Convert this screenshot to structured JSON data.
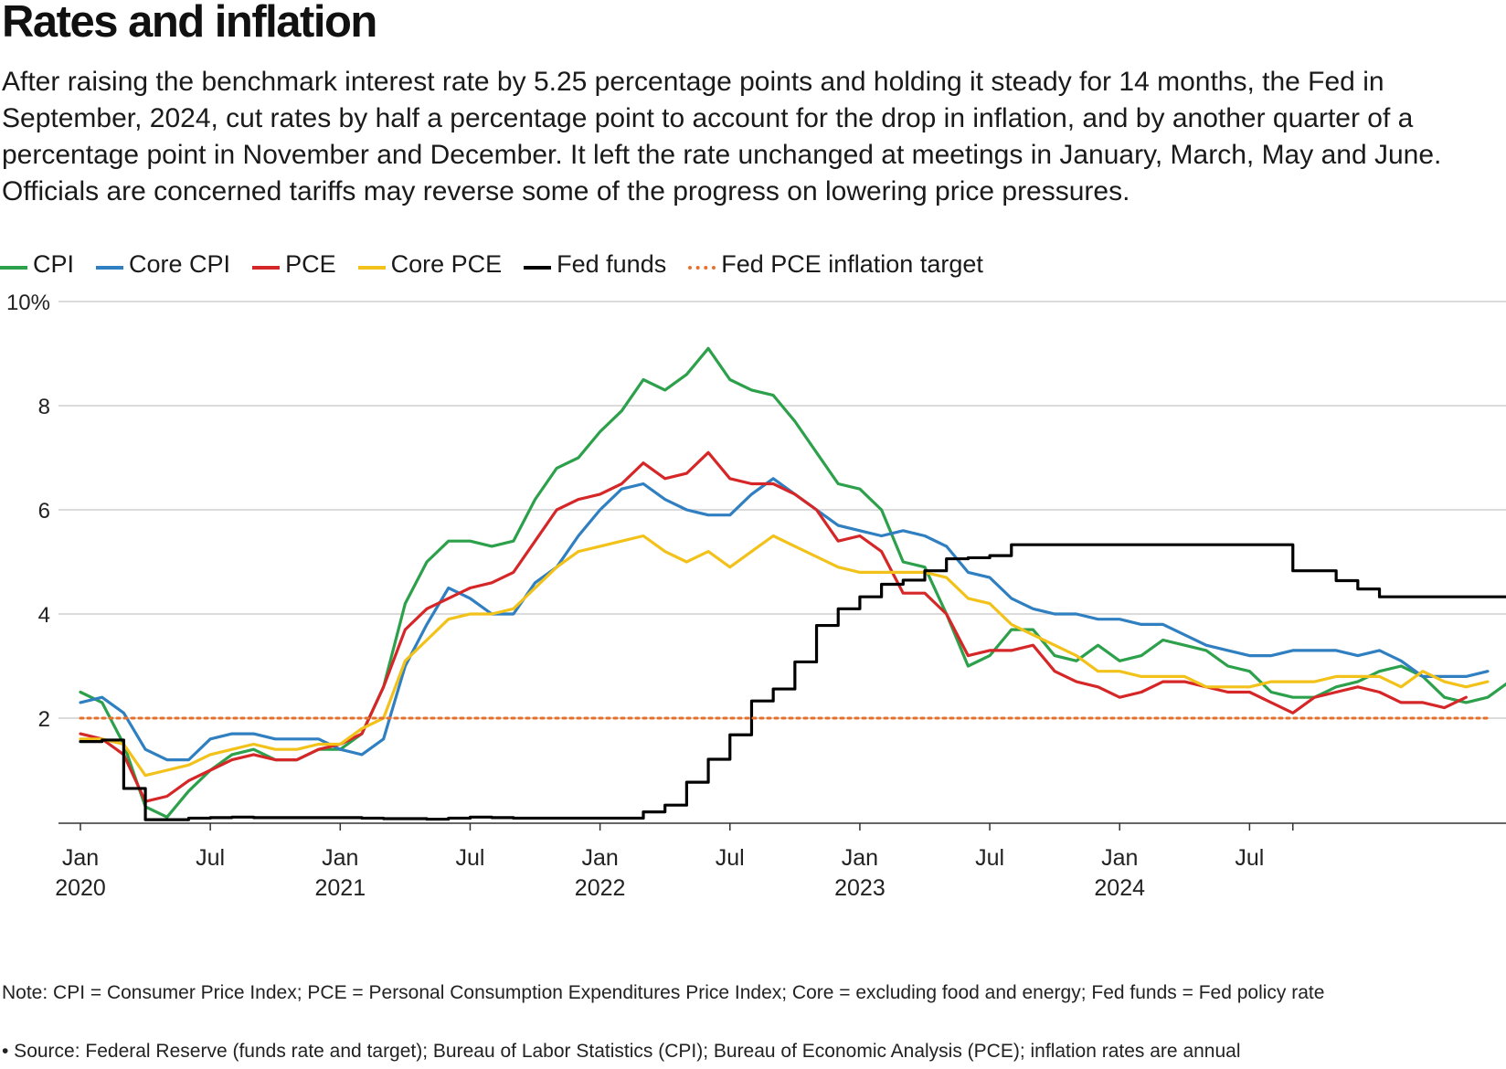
{
  "title": "Rates and inflation",
  "subtitle": "After raising the benchmark interest rate by 5.25 percentage points and holding it steady for 14 months, the Fed in September, 2024, cut rates by half a percentage point to account for the drop in inflation, and by another quarter of a percentage point in November and December. It left the rate unchanged at meetings in January, March, May and June. Officials are concerned tariffs may reverse some of the progress on lowering price pressures.",
  "note": "Note: CPI = Consumer Price Index; PCE = Personal Consumption Expenditures Price Index; Core = excluding food and energy; Fed funds = Fed policy rate",
  "source": "• Source: Federal Reserve (funds rate and target); Bureau of Labor Statistics (CPI); Bureau of Economic Analysis (PCE); inflation rates are annual",
  "chart_data": {
    "type": "line",
    "title": "Rates and inflation",
    "xlabel": "",
    "ylabel": "",
    "x_start": "2020-01",
    "x_unit": "month",
    "x_range": [
      0,
      65
    ],
    "ylim": [
      0,
      10
    ],
    "y_ticks": [
      {
        "value": 10,
        "label": "10%"
      },
      {
        "value": 8,
        "label": "8"
      },
      {
        "value": 6,
        "label": "6"
      },
      {
        "value": 4,
        "label": "4"
      },
      {
        "value": 2,
        "label": "2"
      }
    ],
    "x_ticks": [
      {
        "month": 0,
        "label": "Jan",
        "year": "2020"
      },
      {
        "month": 6,
        "label": "Jul",
        "year": ""
      },
      {
        "month": 12,
        "label": "Jan",
        "year": "2021"
      },
      {
        "month": 18,
        "label": "Jul",
        "year": ""
      },
      {
        "month": 24,
        "label": "Jan",
        "year": "2022"
      },
      {
        "month": 30,
        "label": "Jul",
        "year": ""
      },
      {
        "month": 36,
        "label": "Jan",
        "year": "2023"
      },
      {
        "month": 42,
        "label": "Jul",
        "year": ""
      },
      {
        "month": 48,
        "label": "Jan",
        "year": "2024"
      },
      {
        "month": 54,
        "label": "Jul",
        "year": ""
      }
    ],
    "extra_tick_months": [
      56
    ],
    "grid": true,
    "legend_position": "top-left",
    "series": [
      {
        "name": "CPI",
        "color": "#2ca04a",
        "style": "solid",
        "step": false,
        "values": [
          2.5,
          2.3,
          1.5,
          0.3,
          0.1,
          0.6,
          1.0,
          1.3,
          1.4,
          1.2,
          1.2,
          1.4,
          1.4,
          1.7,
          2.6,
          4.2,
          5.0,
          5.4,
          5.4,
          5.3,
          5.4,
          6.2,
          6.8,
          7.0,
          7.5,
          7.9,
          8.5,
          8.3,
          8.6,
          9.1,
          8.5,
          8.3,
          8.2,
          7.7,
          7.1,
          6.5,
          6.4,
          6.0,
          5.0,
          4.9,
          4.0,
          3.0,
          3.2,
          3.7,
          3.7,
          3.2,
          3.1,
          3.4,
          3.1,
          3.2,
          3.5,
          3.4,
          3.3,
          3.0,
          2.9,
          2.5,
          2.4,
          2.4,
          2.6,
          2.7,
          2.9,
          3.0,
          2.8,
          2.4,
          2.3,
          2.4,
          2.7
        ]
      },
      {
        "name": "Core CPI",
        "color": "#2f7fc1",
        "style": "solid",
        "step": false,
        "values": [
          2.3,
          2.4,
          2.1,
          1.4,
          1.2,
          1.2,
          1.6,
          1.7,
          1.7,
          1.6,
          1.6,
          1.6,
          1.4,
          1.3,
          1.6,
          3.0,
          3.8,
          4.5,
          4.3,
          4.0,
          4.0,
          4.6,
          4.9,
          5.5,
          6.0,
          6.4,
          6.5,
          6.2,
          6.0,
          5.9,
          5.9,
          6.3,
          6.6,
          6.3,
          6.0,
          5.7,
          5.6,
          5.5,
          5.6,
          5.5,
          5.3,
          4.8,
          4.7,
          4.3,
          4.1,
          4.0,
          4.0,
          3.9,
          3.9,
          3.8,
          3.8,
          3.6,
          3.4,
          3.3,
          3.2,
          3.2,
          3.3,
          3.3,
          3.3,
          3.2,
          3.3,
          3.1,
          2.8,
          2.8,
          2.8,
          2.9
        ]
      },
      {
        "name": "PCE",
        "color": "#d62728",
        "style": "solid",
        "step": false,
        "values": [
          1.7,
          1.6,
          1.3,
          0.4,
          0.5,
          0.8,
          1.0,
          1.2,
          1.3,
          1.2,
          1.2,
          1.4,
          1.5,
          1.7,
          2.6,
          3.7,
          4.1,
          4.3,
          4.5,
          4.6,
          4.8,
          5.4,
          6.0,
          6.2,
          6.3,
          6.5,
          6.9,
          6.6,
          6.7,
          7.1,
          6.6,
          6.5,
          6.5,
          6.3,
          6.0,
          5.4,
          5.5,
          5.2,
          4.4,
          4.4,
          4.0,
          3.2,
          3.3,
          3.3,
          3.4,
          2.9,
          2.7,
          2.6,
          2.4,
          2.5,
          2.7,
          2.7,
          2.6,
          2.5,
          2.5,
          2.3,
          2.1,
          2.4,
          2.5,
          2.6,
          2.5,
          2.3,
          2.3,
          2.2,
          2.4
        ]
      },
      {
        "name": "Core PCE",
        "color": "#f2c21a",
        "style": "solid",
        "step": false,
        "values": [
          1.6,
          1.6,
          1.5,
          0.9,
          1.0,
          1.1,
          1.3,
          1.4,
          1.5,
          1.4,
          1.4,
          1.5,
          1.5,
          1.8,
          2.0,
          3.1,
          3.5,
          3.9,
          4.0,
          4.0,
          4.1,
          4.5,
          4.9,
          5.2,
          5.3,
          5.4,
          5.5,
          5.2,
          5.0,
          5.2,
          4.9,
          5.2,
          5.5,
          5.3,
          5.1,
          4.9,
          4.8,
          4.8,
          4.8,
          4.8,
          4.7,
          4.3,
          4.2,
          3.8,
          3.6,
          3.4,
          3.2,
          2.9,
          2.9,
          2.8,
          2.8,
          2.8,
          2.6,
          2.6,
          2.6,
          2.7,
          2.7,
          2.7,
          2.8,
          2.8,
          2.8,
          2.6,
          2.9,
          2.7,
          2.6,
          2.7
        ]
      },
      {
        "name": "Fed funds",
        "color": "#000000",
        "style": "solid",
        "step": true,
        "values": [
          1.55,
          1.58,
          0.65,
          0.05,
          0.05,
          0.08,
          0.09,
          0.1,
          0.09,
          0.09,
          0.09,
          0.09,
          0.09,
          0.08,
          0.07,
          0.07,
          0.06,
          0.08,
          0.1,
          0.09,
          0.08,
          0.08,
          0.08,
          0.08,
          0.08,
          0.08,
          0.2,
          0.33,
          0.77,
          1.21,
          1.68,
          2.33,
          2.56,
          3.08,
          3.78,
          4.1,
          4.33,
          4.57,
          4.65,
          4.83,
          5.06,
          5.08,
          5.12,
          5.33,
          5.33,
          5.33,
          5.33,
          5.33,
          5.33,
          5.33,
          5.33,
          5.33,
          5.33,
          5.33,
          5.33,
          5.33,
          4.83,
          4.83,
          4.64,
          4.48,
          4.33,
          4.33,
          4.33,
          4.33,
          4.33,
          4.33,
          4.33
        ],
        "end_month": 64
      },
      {
        "name": "Fed PCE inflation target",
        "color": "#e5712b",
        "style": "dotted",
        "step": false,
        "values": [
          2,
          2
        ],
        "constant": 2
      }
    ]
  }
}
